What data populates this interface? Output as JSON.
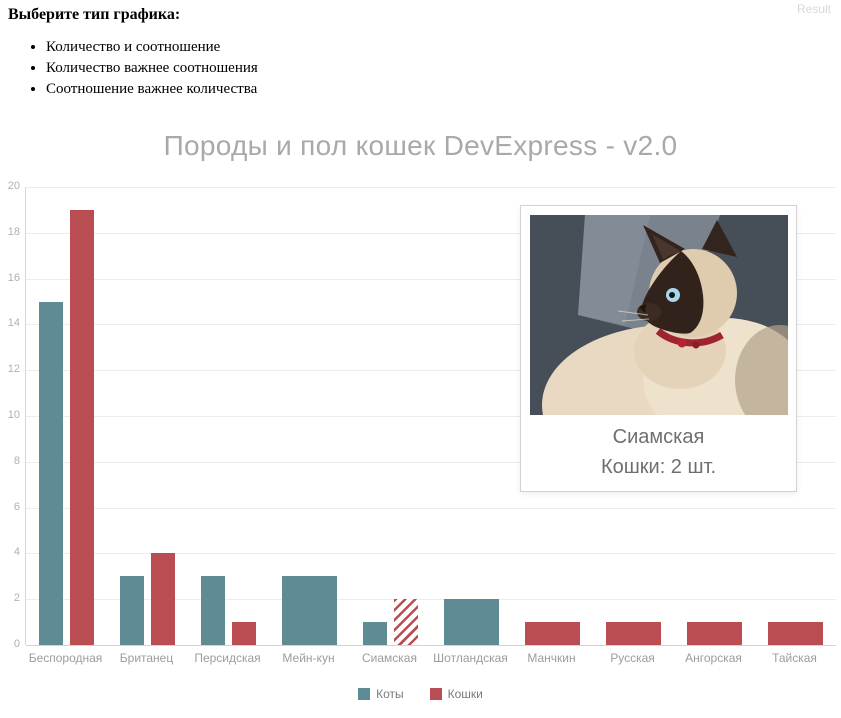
{
  "header": {
    "prompt": "Выберите тип графика:",
    "options": [
      "Количество и соотношение",
      "Количество важнее соотношения",
      "Соотношение важнее количества"
    ],
    "result_label": "Result"
  },
  "chart_data": {
    "type": "bar",
    "title": "Породы и пол кошек DevExpress - v2.0",
    "categories": [
      "Беспородная",
      "Британец",
      "Персидская",
      "Мейн-кун",
      "Сиамская",
      "Шотландская",
      "Манчкин",
      "Русская",
      "Ангорская",
      "Тайская"
    ],
    "series": [
      {
        "name": "Коты",
        "color": "#5f8b95",
        "values": [
          15,
          3,
          3,
          3,
          1,
          2,
          0,
          0,
          0,
          0
        ]
      },
      {
        "name": "Кошки",
        "color": "#ba4d51",
        "values": [
          19,
          4,
          1,
          0,
          2,
          0,
          1,
          1,
          1,
          1
        ]
      }
    ],
    "ylim": [
      0,
      20
    ],
    "y_ticks": [
      0,
      2,
      4,
      6,
      8,
      10,
      12,
      14,
      16,
      18,
      20
    ],
    "grid": true,
    "legend_position": "bottom",
    "highlighted": {
      "category": "Сиамская",
      "series": "Кошки",
      "style": "hatched"
    }
  },
  "tooltip": {
    "breed": "Сиамская",
    "value_text": "Кошки: 2 шт.",
    "image": "siamese-cat-photo"
  },
  "colors": {
    "male": "#5f8b95",
    "female": "#ba4d51",
    "title": "#a9a9a9",
    "gridline": "#ececec"
  }
}
